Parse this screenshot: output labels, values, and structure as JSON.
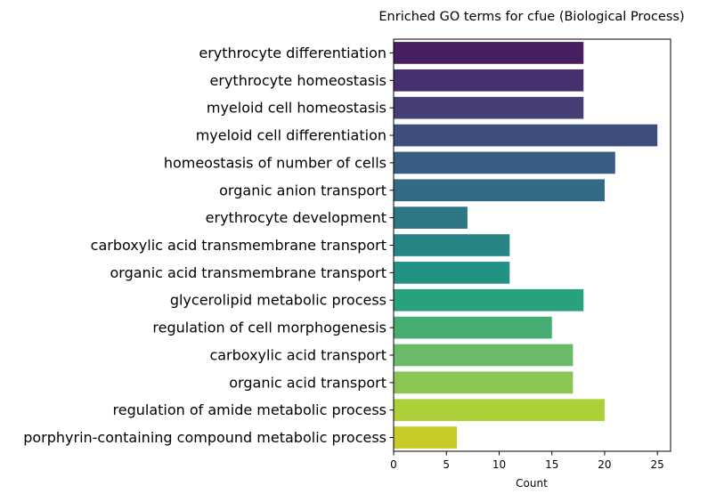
{
  "chart_data": {
    "type": "bar",
    "orientation": "horizontal",
    "title": "Enriched GO terms for cfue (Biological Process)",
    "xlabel": "Count",
    "ylabel": "",
    "xlim": [
      0,
      26.25
    ],
    "xticks": [
      0,
      5,
      10,
      15,
      20,
      25
    ],
    "grid": false,
    "legend": "none",
    "categories": [
      "erythrocyte differentiation",
      "erythrocyte homeostasis",
      "myeloid cell homeostasis",
      "myeloid cell differentiation",
      "homeostasis of number of cells",
      "organic anion transport",
      "erythrocyte development",
      "carboxylic acid transmembrane transport",
      "organic acid transmembrane transport",
      "glycerolipid metabolic process",
      "regulation of cell morphogenesis",
      "carboxylic acid transport",
      "organic acid transport",
      "regulation of amide metabolic process",
      "porphyrin-containing compound metabolic process"
    ],
    "values": [
      18,
      18,
      18,
      25,
      21,
      20,
      7,
      11,
      11,
      18,
      15,
      17,
      17,
      20,
      6
    ],
    "colors": [
      "#482062",
      "#482f6d",
      "#463f76",
      "#3f4e7d",
      "#395d82",
      "#336a85",
      "#2e7785",
      "#278585",
      "#229284",
      "#29a07e",
      "#45ad72",
      "#69bb67",
      "#8bc654",
      "#acd038",
      "#c7cc2a"
    ]
  }
}
